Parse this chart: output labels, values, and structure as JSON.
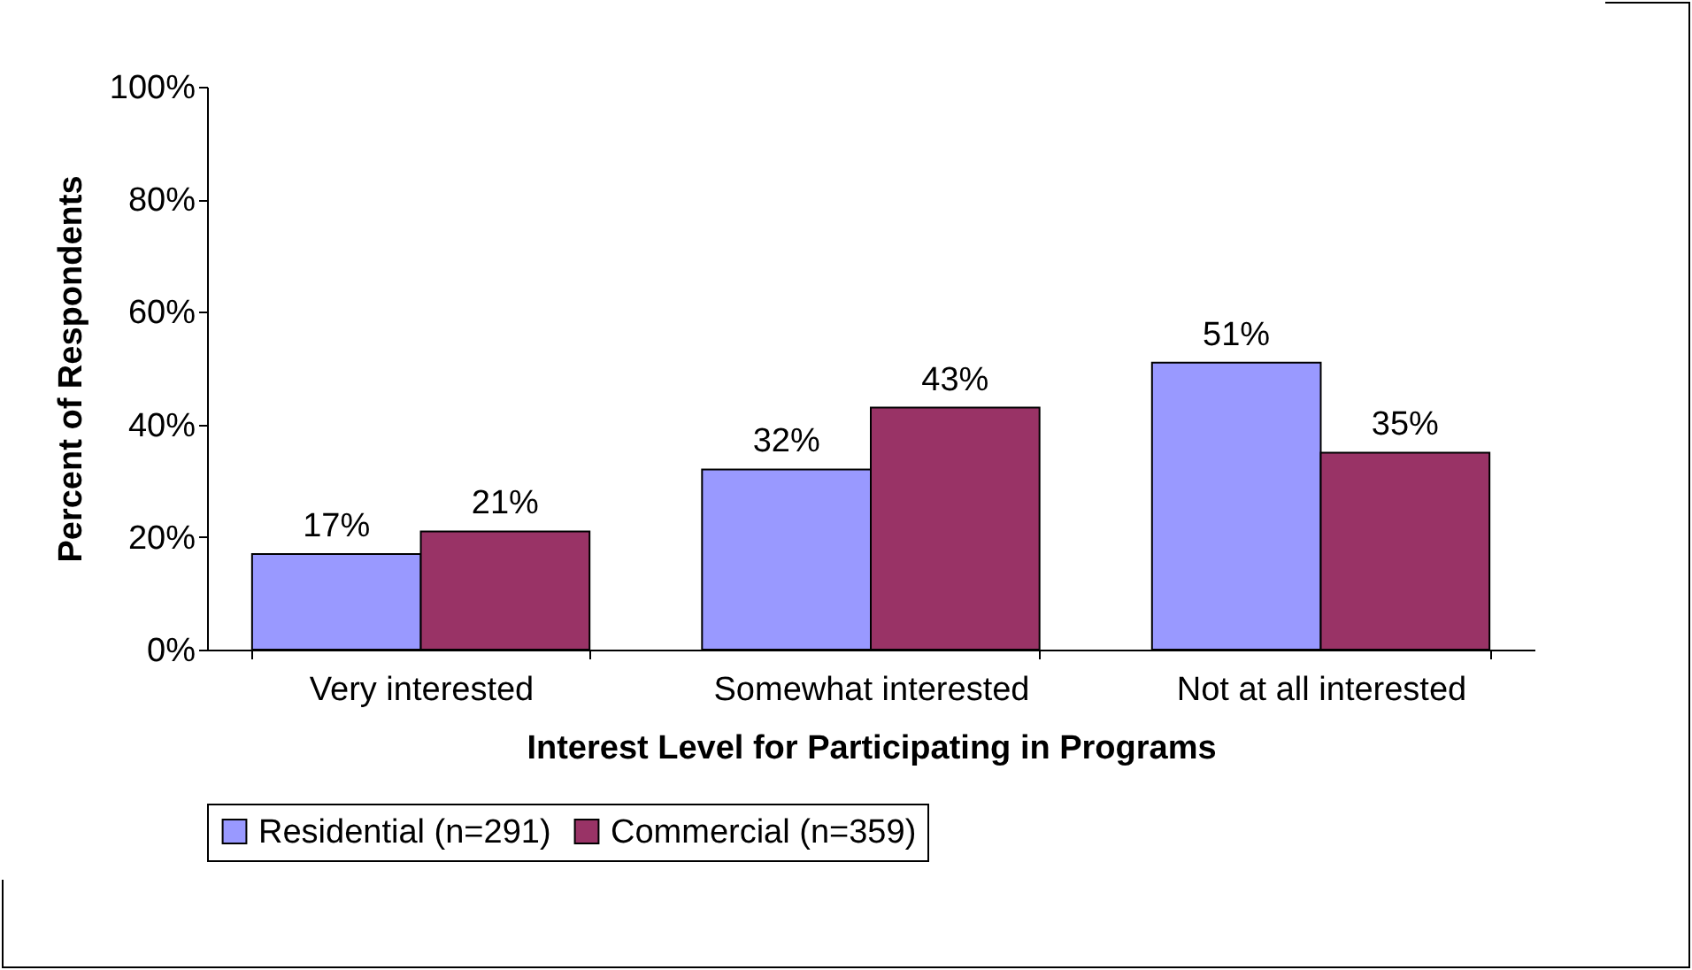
{
  "chart_data": {
    "type": "bar",
    "xlabel": "Interest Level for Participating in Programs",
    "ylabel": "Percent of Respondents",
    "categories": [
      "Very interested",
      "Somewhat interested",
      "Not at all interested"
    ],
    "series": [
      {
        "name": "Residential (n=291)",
        "color": "#9999ff",
        "values": [
          17,
          32,
          51
        ],
        "value_labels": [
          "17%",
          "32%",
          "51%"
        ]
      },
      {
        "name": "Commercial (n=359)",
        "color": "#993366",
        "values": [
          21,
          43,
          35
        ],
        "value_labels": [
          "21%",
          "43%",
          "35%"
        ]
      }
    ],
    "ylim": [
      0,
      100
    ],
    "yticks": [
      {
        "value": 0,
        "label": "0%"
      },
      {
        "value": 20,
        "label": "20%"
      },
      {
        "value": 40,
        "label": "40%"
      },
      {
        "value": 60,
        "label": "60%"
      },
      {
        "value": 80,
        "label": "80%"
      },
      {
        "value": 100,
        "label": "100%"
      }
    ],
    "grid": false,
    "legend": "bottom"
  }
}
